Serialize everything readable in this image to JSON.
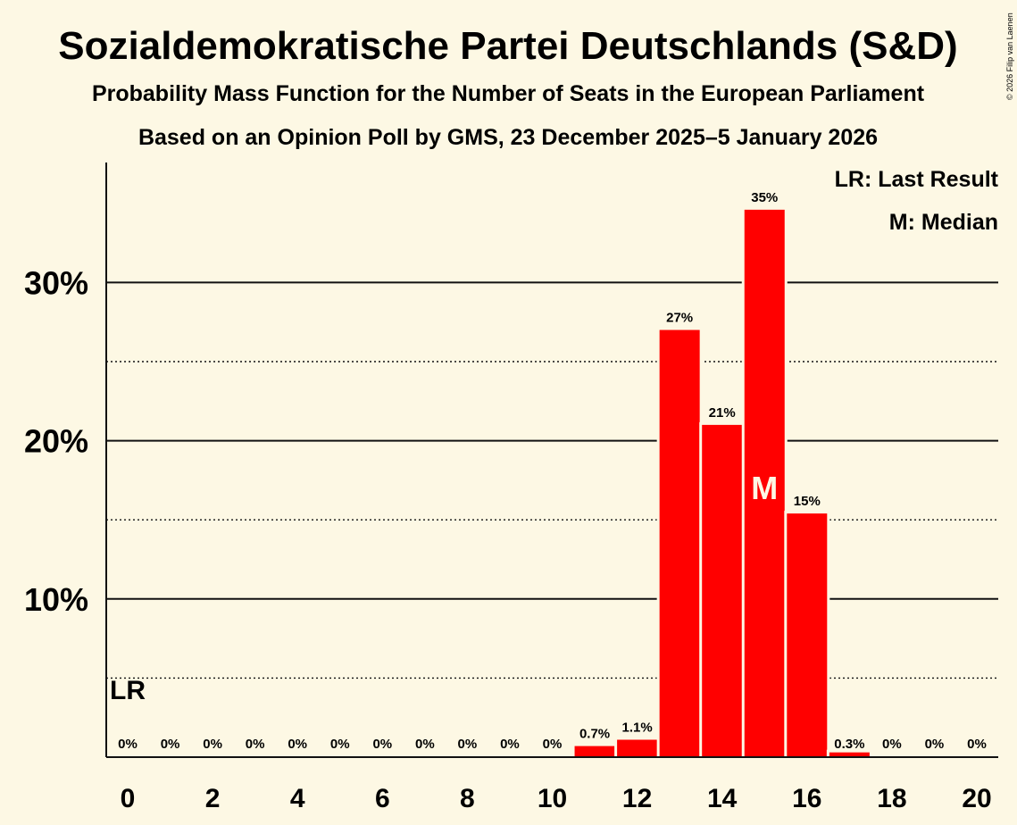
{
  "chart_data": {
    "type": "bar",
    "title": "Sozialdemokratische Partei Deutschlands (S&D)",
    "subtitle": "Probability Mass Function for the Number of Seats in the European Parliament",
    "subtitle2": "Based on an Opinion Poll by GMS, 23 December 2025–5 January 2026",
    "copyright": "© 2026 Filip van Laenen",
    "legend": {
      "last_result": "LR: Last Result",
      "median": "M: Median",
      "position": "top-right"
    },
    "x": [
      0,
      1,
      2,
      3,
      4,
      5,
      6,
      7,
      8,
      9,
      10,
      11,
      12,
      13,
      14,
      15,
      16,
      17,
      18,
      19,
      20
    ],
    "values": [
      0,
      0,
      0,
      0,
      0,
      0,
      0,
      0,
      0,
      0,
      0,
      0.7,
      1.1,
      27,
      21,
      34.6,
      15.4,
      0.3,
      0,
      0,
      0
    ],
    "labels": [
      "0%",
      "0%",
      "0%",
      "0%",
      "0%",
      "0%",
      "0%",
      "0%",
      "0%",
      "0%",
      "0%",
      "0.7%",
      "1.1%",
      "27%",
      "21%",
      "35%",
      "15%",
      "0.3%",
      "0%",
      "0%",
      "0%"
    ],
    "xticks": [
      "0",
      "2",
      "4",
      "6",
      "8",
      "10",
      "12",
      "14",
      "16",
      "18",
      "20"
    ],
    "yticks": [
      "10%",
      "20%",
      "30%"
    ],
    "ylim": [
      0,
      37.5
    ],
    "grid": {
      "solid": [
        10,
        20,
        30
      ],
      "dotted": [
        5,
        15,
        25
      ]
    },
    "last_result": {
      "seat": 0,
      "label": "LR"
    },
    "median": {
      "seat": 15,
      "label": "M"
    },
    "bar_color": "#ff0000",
    "background": "#fdf8e4"
  }
}
